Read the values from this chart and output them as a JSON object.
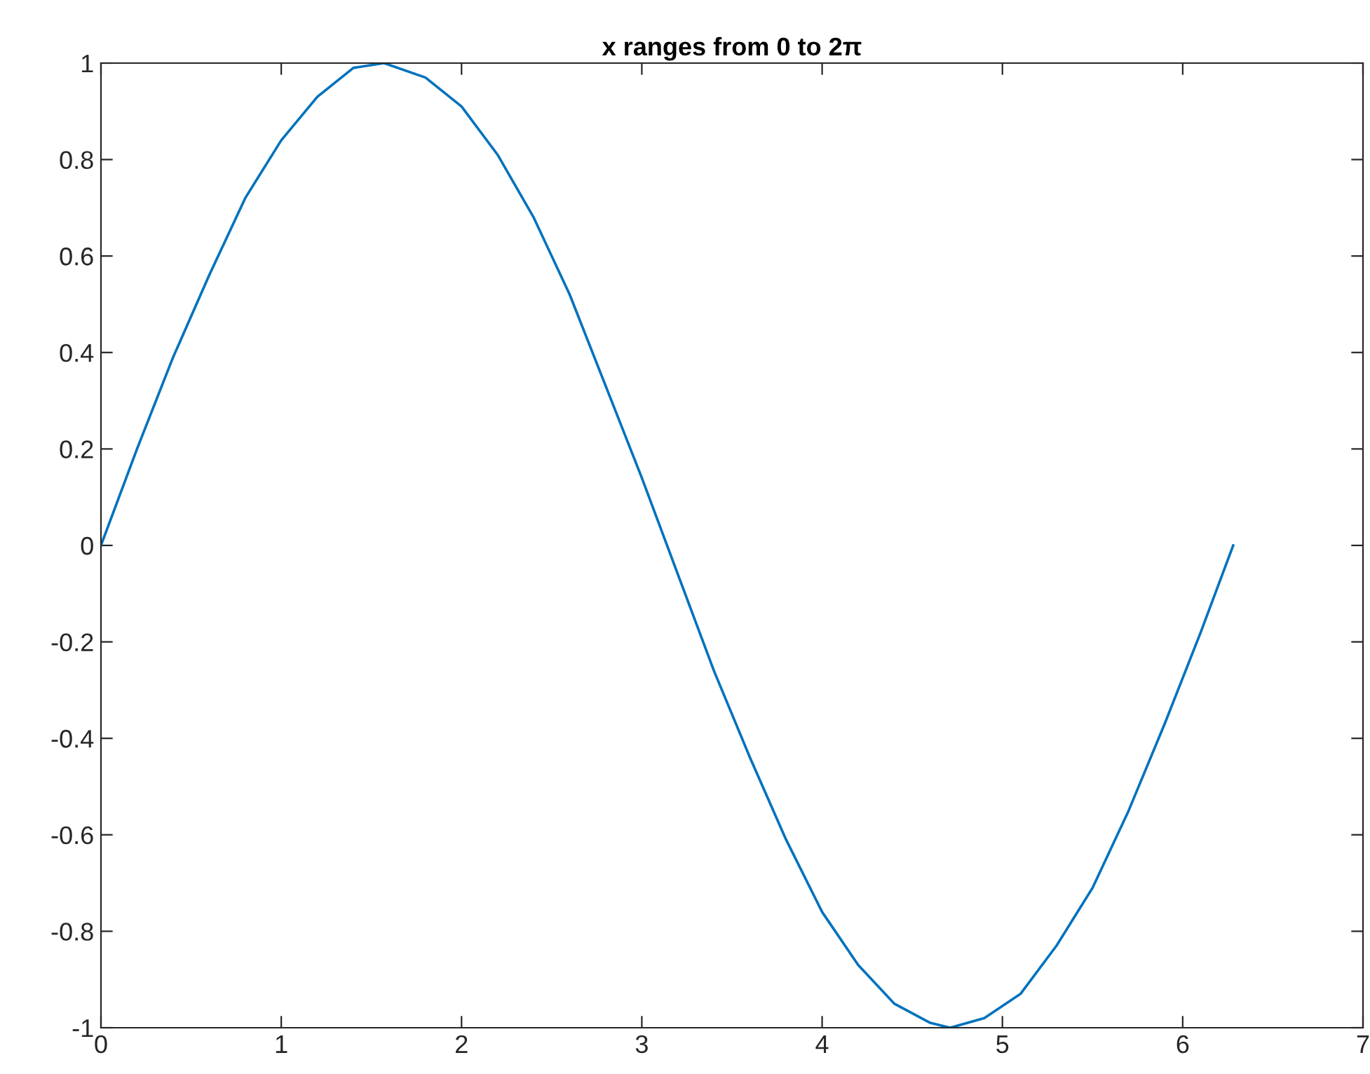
{
  "chart_data": {
    "type": "line",
    "title": "x ranges from 0 to 2π",
    "series": [
      {
        "color": "#0072bd",
        "x": [
          0,
          0.2,
          0.4,
          0.6,
          0.8,
          1.0,
          1.2,
          1.4,
          1.57,
          1.8,
          2.0,
          2.2,
          2.4,
          2.6,
          2.8,
          3.0,
          3.2,
          3.4,
          3.6,
          3.8,
          4.0,
          4.2,
          4.4,
          4.6,
          4.71,
          4.9,
          5.1,
          5.3,
          5.5,
          5.7,
          5.9,
          6.1,
          6.28
        ],
        "values": [
          0,
          0.2,
          0.39,
          0.56,
          0.72,
          0.84,
          0.93,
          0.99,
          1.0,
          0.97,
          0.91,
          0.81,
          0.68,
          0.52,
          0.33,
          0.14,
          -0.06,
          -0.26,
          -0.44,
          -0.61,
          -0.76,
          -0.87,
          -0.95,
          -0.99,
          -1.0,
          -0.98,
          -0.93,
          -0.83,
          -0.71,
          -0.55,
          -0.37,
          -0.18,
          0.0
        ]
      }
    ],
    "xlim": [
      0,
      7
    ],
    "xticks": [
      0,
      1,
      2,
      3,
      4,
      5,
      6,
      7
    ],
    "ylim": [
      -1,
      1
    ],
    "yticks": [
      -1,
      -0.8,
      -0.6,
      -0.4,
      -0.2,
      0,
      0.2,
      0.4,
      0.6,
      0.8,
      1
    ],
    "grid": false,
    "legend": false
  }
}
